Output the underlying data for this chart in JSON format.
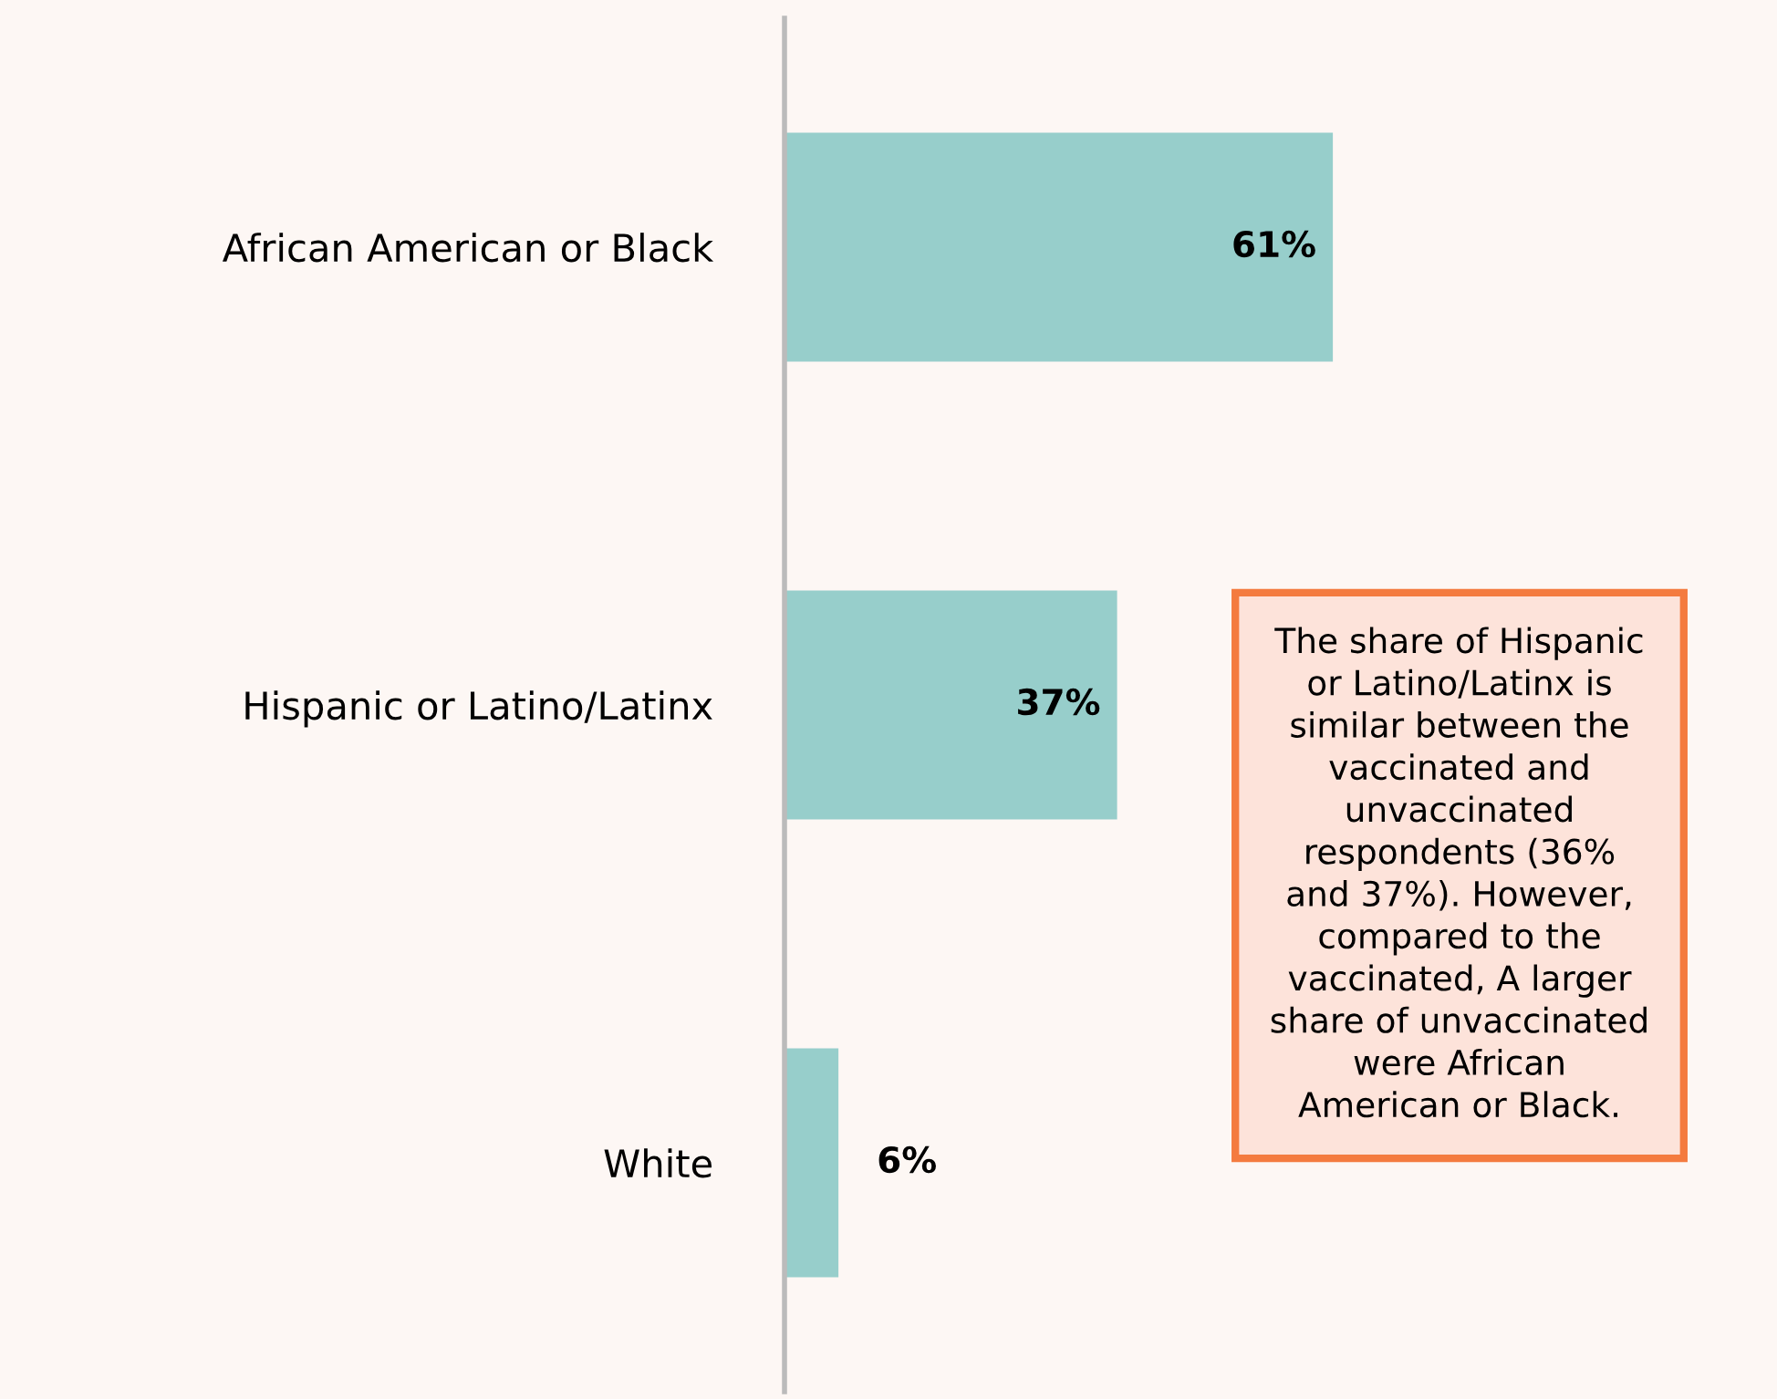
{
  "chart_data": {
    "type": "bar",
    "orientation": "horizontal",
    "categories": [
      "African American or Black",
      "Hispanic or Latino/Latinx",
      "White"
    ],
    "values": [
      61,
      37,
      6
    ],
    "color": "#97cecb",
    "value_labels": [
      "61%",
      "37%",
      "6%"
    ],
    "grid": false,
    "legend": false,
    "annotations": [
      "The share of Hispanic\nor Latino/Latinx is\nsimilar between the\nvaccinated and\nunvaccinated\nrespondents (36%\nand 37%). However,\ncompared to the\nvaccinated, A larger\nshare of unvaccinated\nwere African\nAmerican or Black."
    ]
  }
}
